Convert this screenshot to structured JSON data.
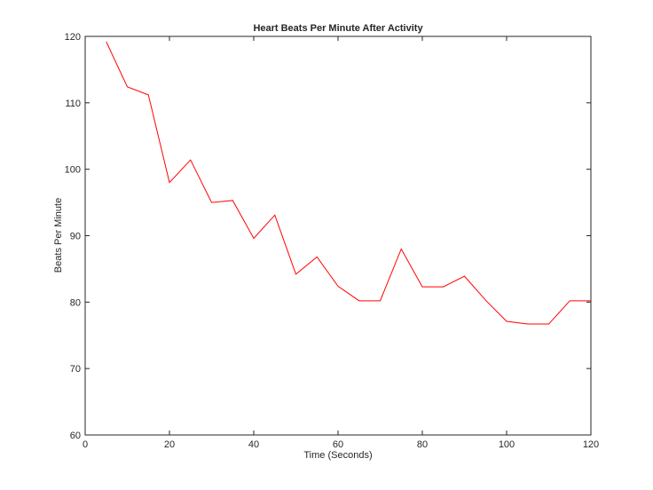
{
  "chart_data": {
    "type": "line",
    "title": "Heart Beats Per Minute After Activity",
    "xlabel": "Time (Seconds)",
    "ylabel": "Beats Per Minute",
    "xlim": [
      0,
      120
    ],
    "ylim": [
      60,
      120
    ],
    "xticks": [
      0,
      20,
      40,
      60,
      80,
      100,
      120
    ],
    "yticks": [
      60,
      70,
      80,
      90,
      100,
      110,
      120
    ],
    "grid": false,
    "series": [
      {
        "color": "#ff0000",
        "x": [
          5,
          10,
          15,
          20,
          25,
          30,
          35,
          40,
          45,
          50,
          55,
          60,
          65,
          70,
          75,
          80,
          85,
          90,
          95,
          100,
          105,
          110,
          115,
          120
        ],
        "y": [
          119.2,
          112.4,
          111.2,
          98.0,
          101.4,
          95.0,
          95.3,
          89.6,
          93.1,
          84.2,
          86.8,
          82.4,
          80.2,
          80.2,
          88.0,
          82.3,
          82.3,
          83.9,
          80.3,
          77.1,
          76.7,
          76.7,
          80.2,
          80.2
        ]
      }
    ]
  }
}
